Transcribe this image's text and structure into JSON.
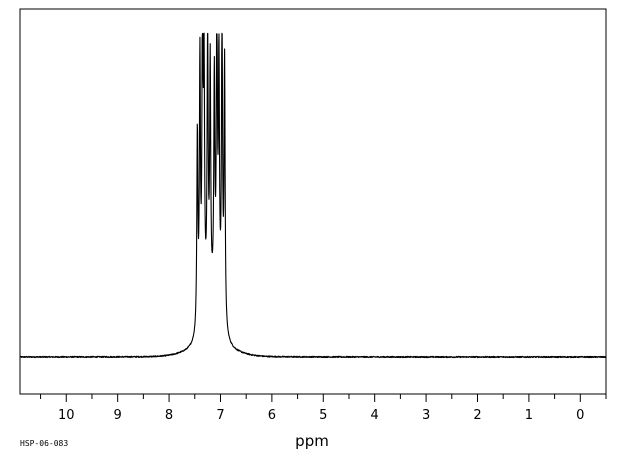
{
  "chart_data": {
    "type": "line",
    "title": "",
    "xlabel": "ppm",
    "ylabel": "",
    "x_reversed": true,
    "xlim": [
      -0.5,
      10.9
    ],
    "ylim": [
      -0.05,
      1.08
    ],
    "x_ticks": [
      10,
      9,
      8,
      7,
      6,
      5,
      4,
      3,
      2,
      1,
      0
    ],
    "minor_tick_step": 0.5,
    "grid": false,
    "legend": "none",
    "line_color": "#000000",
    "baseline_noise": 0.004,
    "sample_id": "HSP-06-083",
    "peaks": [
      {
        "ppm": 7.45,
        "height": 0.62
      },
      {
        "ppm": 7.4,
        "height": 0.82
      },
      {
        "ppm": 7.35,
        "height": 0.96
      },
      {
        "ppm": 7.32,
        "height": 0.78
      },
      {
        "ppm": 7.25,
        "height": 0.86
      },
      {
        "ppm": 7.2,
        "height": 0.74
      },
      {
        "ppm": 7.12,
        "height": 0.7
      },
      {
        "ppm": 7.07,
        "height": 0.96
      },
      {
        "ppm": 7.03,
        "height": 0.78
      },
      {
        "ppm": 6.97,
        "height": 1.0
      },
      {
        "ppm": 6.92,
        "height": 0.84
      }
    ]
  }
}
